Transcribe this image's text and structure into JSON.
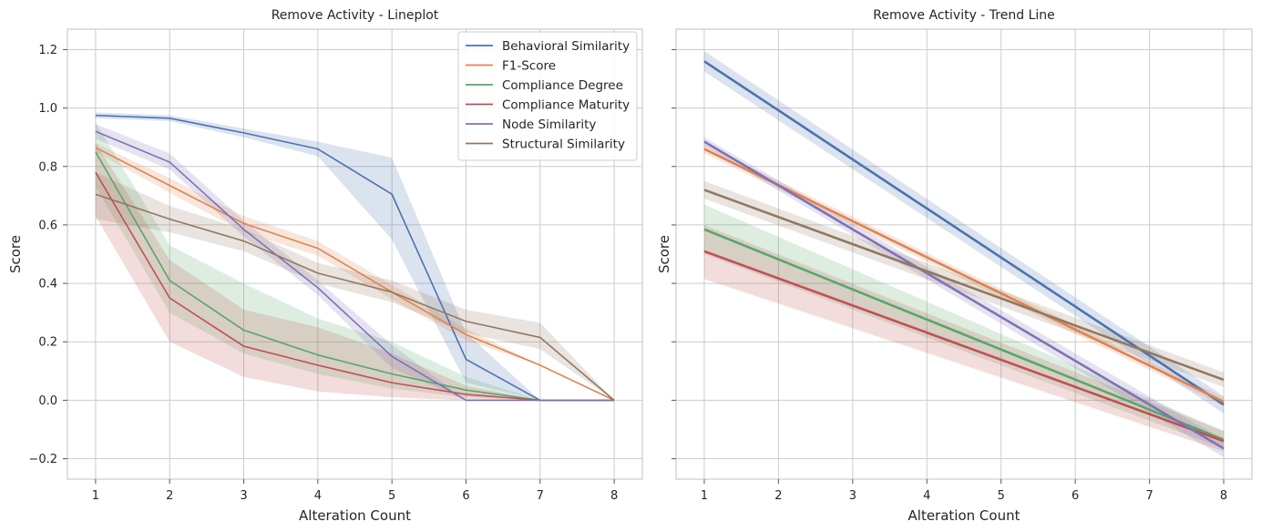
{
  "chart_data": [
    {
      "type": "line",
      "title": "Remove Activity - Lineplot",
      "xlabel": "Alteration Count",
      "ylabel": "Score",
      "x": [
        1,
        2,
        3,
        4,
        5,
        6,
        7,
        8
      ],
      "xlim": [
        0.62,
        8.38
      ],
      "ylim": [
        -0.27,
        1.27
      ],
      "yticks": [
        -0.2,
        0.0,
        0.2,
        0.4,
        0.6,
        0.8,
        1.0,
        1.2
      ],
      "ytick_labels": [
        "−0.2",
        "0.0",
        "0.2",
        "0.4",
        "0.6",
        "0.8",
        "1.0",
        "1.2"
      ],
      "xtick_labels": [
        "1",
        "2",
        "3",
        "4",
        "5",
        "6",
        "7",
        "8"
      ],
      "grid": true,
      "legend_position": "top-right",
      "series": [
        {
          "name": "Behavioral Similarity",
          "color": "#4c72b0",
          "values": [
            0.975,
            0.965,
            0.915,
            0.86,
            0.705,
            0.14,
            0.0,
            0.0
          ],
          "lower": [
            0.965,
            0.955,
            0.9,
            0.835,
            0.55,
            0.06,
            0.0,
            0.0
          ],
          "upper": [
            0.985,
            0.975,
            0.93,
            0.885,
            0.83,
            0.23,
            0.0,
            0.0
          ]
        },
        {
          "name": "F1-Score",
          "color": "#dd8452",
          "values": [
            0.865,
            0.735,
            0.605,
            0.52,
            0.37,
            0.225,
            0.12,
            0.0
          ],
          "lower": [
            0.85,
            0.71,
            0.575,
            0.495,
            0.345,
            0.205,
            0.12,
            0.0
          ],
          "upper": [
            0.88,
            0.76,
            0.63,
            0.545,
            0.395,
            0.245,
            0.12,
            0.0
          ]
        },
        {
          "name": "Compliance Degree",
          "color": "#55a868",
          "values": [
            0.85,
            0.41,
            0.24,
            0.155,
            0.09,
            0.035,
            0.0,
            0.0
          ],
          "lower": [
            0.73,
            0.3,
            0.16,
            0.09,
            0.04,
            0.01,
            0.0,
            0.0
          ],
          "upper": [
            0.95,
            0.53,
            0.4,
            0.28,
            0.2,
            0.08,
            0.0,
            0.0
          ]
        },
        {
          "name": "Compliance Maturity",
          "color": "#c44e52",
          "values": [
            0.78,
            0.35,
            0.185,
            0.12,
            0.06,
            0.02,
            0.0,
            0.0
          ],
          "lower": [
            0.63,
            0.2,
            0.08,
            0.03,
            0.01,
            0.0,
            0.0,
            0.0
          ],
          "upper": [
            0.88,
            0.48,
            0.31,
            0.25,
            0.16,
            0.05,
            0.0,
            0.0
          ]
        },
        {
          "name": "Node Similarity",
          "color": "#8172b3",
          "values": [
            0.92,
            0.815,
            0.585,
            0.385,
            0.15,
            0.0,
            0.0,
            0.0
          ],
          "lower": [
            0.895,
            0.79,
            0.56,
            0.36,
            0.11,
            0.0,
            0.0,
            0.0
          ],
          "upper": [
            0.945,
            0.845,
            0.615,
            0.41,
            0.19,
            0.0,
            0.0,
            0.0
          ]
        },
        {
          "name": "Structural Similarity",
          "color": "#937860",
          "values": [
            0.705,
            0.62,
            0.545,
            0.435,
            0.37,
            0.27,
            0.215,
            0.0
          ],
          "lower": [
            0.62,
            0.575,
            0.51,
            0.4,
            0.335,
            0.23,
            0.175,
            0.0
          ],
          "upper": [
            0.78,
            0.665,
            0.585,
            0.47,
            0.41,
            0.31,
            0.265,
            0.0
          ]
        }
      ]
    },
    {
      "type": "line",
      "title": "Remove Activity - Trend Line",
      "xlabel": "Alteration Count",
      "ylabel": "Score",
      "x": [
        1,
        8
      ],
      "xlim": [
        0.62,
        8.38
      ],
      "ylim": [
        -0.27,
        1.27
      ],
      "xtick_labels": [
        "1",
        "2",
        "3",
        "4",
        "5",
        "6",
        "7",
        "8"
      ],
      "grid": true,
      "shared_y_with_left": true,
      "series": [
        {
          "name": "Behavioral Similarity",
          "color": "#4c72b0",
          "values": [
            1.16,
            -0.015
          ],
          "lower": [
            1.125,
            -0.045
          ],
          "upper": [
            1.195,
            0.015
          ]
        },
        {
          "name": "F1-Score",
          "color": "#dd8452",
          "values": [
            0.86,
            -0.005
          ],
          "lower": [
            0.845,
            -0.02
          ],
          "upper": [
            0.875,
            0.01
          ]
        },
        {
          "name": "Compliance Degree",
          "color": "#55a868",
          "values": [
            0.585,
            -0.135
          ],
          "lower": [
            0.5,
            -0.165
          ],
          "upper": [
            0.67,
            -0.105
          ]
        },
        {
          "name": "Compliance Maturity",
          "color": "#c44e52",
          "values": [
            0.51,
            -0.14
          ],
          "lower": [
            0.415,
            -0.175
          ],
          "upper": [
            0.6,
            -0.105
          ]
        },
        {
          "name": "Node Similarity",
          "color": "#8172b3",
          "values": [
            0.885,
            -0.165
          ],
          "lower": [
            0.87,
            -0.195
          ],
          "upper": [
            0.9,
            -0.135
          ]
        },
        {
          "name": "Structural Similarity",
          "color": "#937860",
          "values": [
            0.72,
            0.07
          ],
          "lower": [
            0.69,
            0.045
          ],
          "upper": [
            0.75,
            0.095
          ]
        }
      ]
    }
  ]
}
